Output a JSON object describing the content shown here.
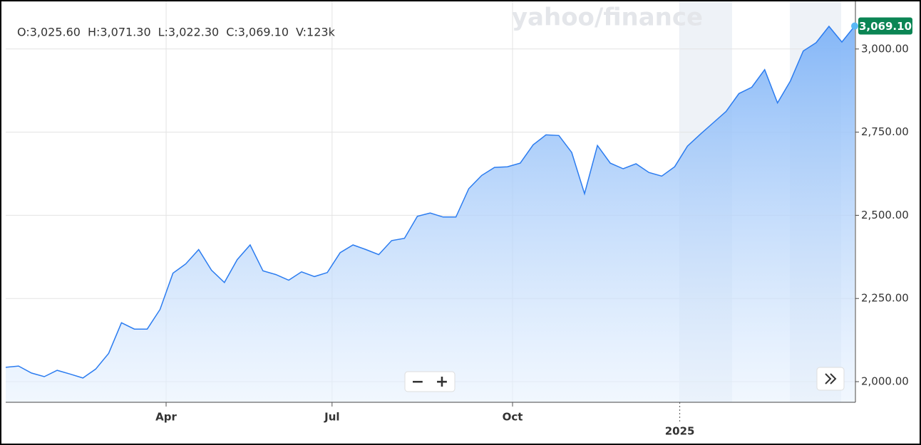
{
  "chart_data": {
    "type": "area",
    "header": [
      "O:3,025.60",
      "H:3,071.30",
      "L:3,022.30",
      "C:3,069.10",
      "V:123k"
    ],
    "watermark": "yahoo/finance",
    "last_label": "3,069.10",
    "controls": {
      "zoom_out": "−",
      "zoom_in": "+"
    },
    "color": "#2b7cf0",
    "x": [
      0,
      1,
      2,
      3,
      4,
      5,
      6,
      7,
      8,
      9,
      10,
      11,
      12,
      13,
      14,
      15,
      16,
      17,
      18,
      19,
      20,
      21,
      22,
      23,
      24,
      25,
      26,
      27,
      28,
      29,
      30,
      31,
      32,
      33,
      34,
      35,
      36,
      37,
      38,
      39,
      40,
      41,
      42,
      43,
      44,
      45,
      46,
      47,
      48,
      49,
      50,
      51,
      52,
      53,
      54,
      55,
      56,
      57,
      58,
      59,
      60,
      61,
      62,
      63,
      64,
      65,
      66
    ],
    "values": [
      2043,
      2047,
      2026,
      2015,
      2034,
      2023,
      2011,
      2038,
      2085,
      2177,
      2158,
      2158,
      2217,
      2326,
      2354,
      2397,
      2335,
      2298,
      2367,
      2411,
      2333,
      2322,
      2305,
      2330,
      2316,
      2328,
      2388,
      2411,
      2397,
      2382,
      2424,
      2431,
      2497,
      2507,
      2495,
      2495,
      2580,
      2620,
      2644,
      2646,
      2657,
      2712,
      2742,
      2740,
      2689,
      2565,
      2710,
      2657,
      2640,
      2655,
      2629,
      2618,
      2646,
      2708,
      2744,
      2778,
      2812,
      2866,
      2885,
      2938,
      2838,
      2904,
      2994,
      3019,
      3068,
      3021,
      3069.1
    ],
    "xlim": [
      0,
      66
    ],
    "xticks": [
      {
        "value": 12.47,
        "label": "Apr"
      },
      {
        "value": 25.37,
        "label": "Jul"
      },
      {
        "value": 39.4,
        "label": "Oct"
      },
      {
        "value": 52.4,
        "label": "2025"
      }
    ],
    "ylim": [
      1938,
      3143
    ],
    "yticks": [
      {
        "value": 2000,
        "label": "2,000.00"
      },
      {
        "value": 2250,
        "label": "2,250.00"
      },
      {
        "value": 2500,
        "label": "2,500.00"
      },
      {
        "value": 2750,
        "label": "2,750.00"
      },
      {
        "value": 3000,
        "label": "3,000.00"
      }
    ],
    "grid": true
  }
}
